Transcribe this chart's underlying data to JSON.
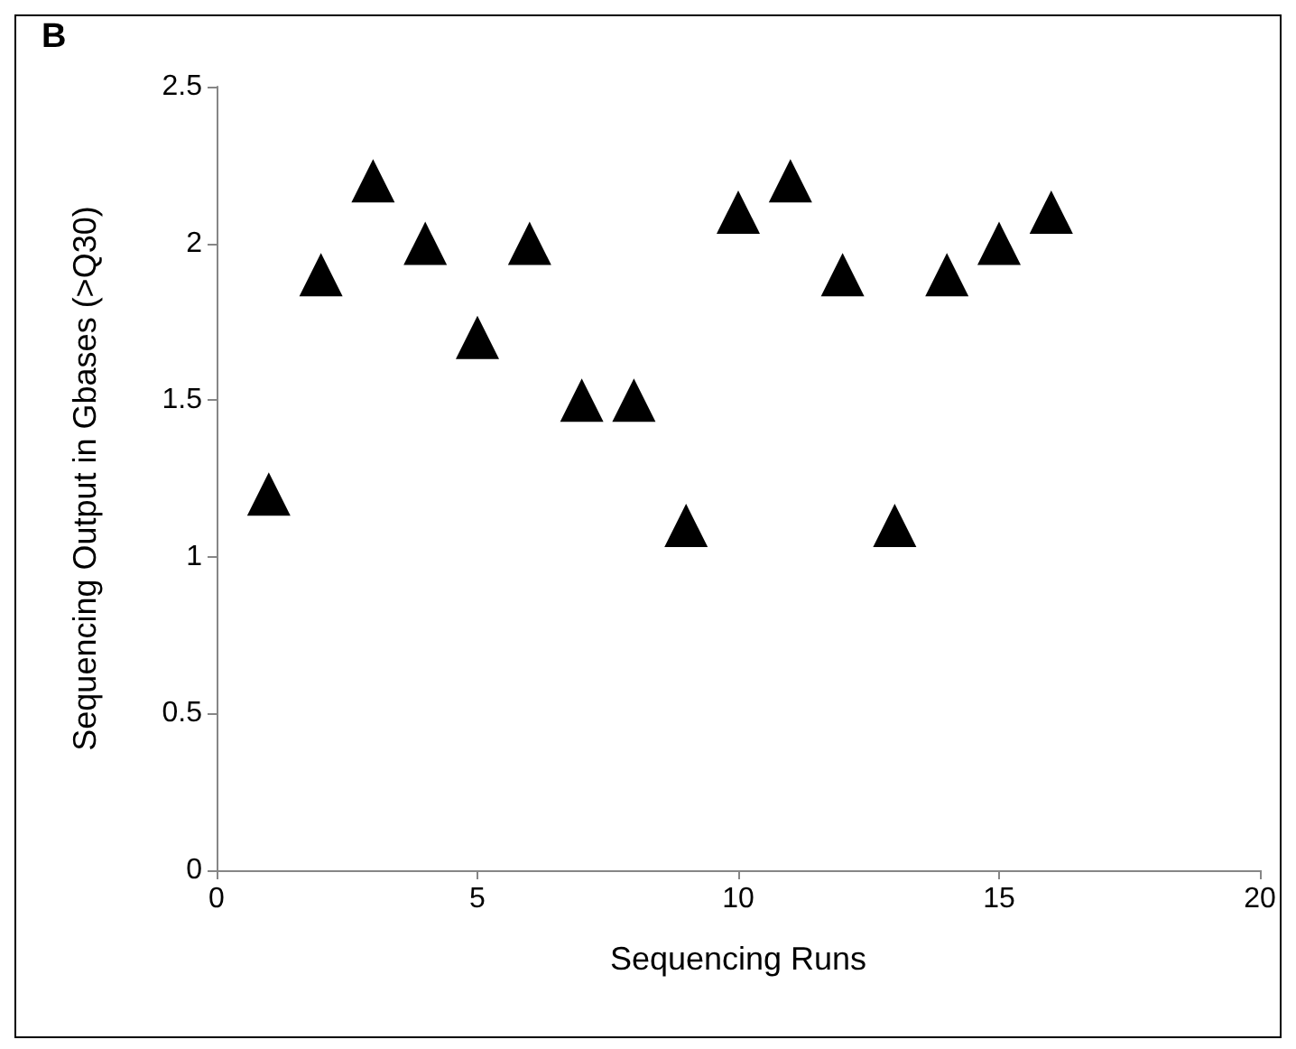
{
  "chart_data": {
    "type": "scatter",
    "title": "B",
    "xlabel": "Sequencing Runs",
    "ylabel": "Sequencing Output in Gbases (>Q30)",
    "x": [
      1,
      2,
      3,
      4,
      5,
      6,
      7,
      8,
      9,
      10,
      11,
      12,
      13,
      14,
      15,
      16
    ],
    "series": [
      {
        "color": "#000000",
        "values": [
          1.2,
          1.9,
          2.2,
          2.0,
          1.7,
          2.0,
          1.5,
          1.5,
          1.1,
          2.1,
          2.2,
          1.9,
          1.1,
          1.9,
          2.0,
          2.1
        ]
      }
    ],
    "xlim": [
      0,
      20
    ],
    "xticks": [
      0,
      5,
      10,
      15,
      20
    ],
    "ylim": [
      0,
      2.5
    ],
    "yticks": [
      0,
      0.5,
      1,
      1.5,
      2,
      2.5
    ],
    "grid": false,
    "marker": "triangle"
  }
}
